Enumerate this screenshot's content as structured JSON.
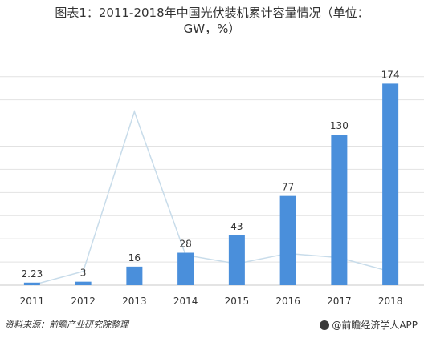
{
  "title_line1": "图表1：2011-2018年中国光伏装机累计容量情况（单位：",
  "title_line2": "GW，%）",
  "source": "资料来源：前瞻产业研究院整理",
  "brand": "@前瞻经济学人APP",
  "colors": {
    "bar": "#4a8fdb",
    "growth_line": "#c8dcea",
    "grid": "#e2e2e2",
    "text": "#333333"
  },
  "chart_data": {
    "type": "bar",
    "categories": [
      "2011",
      "2012",
      "2013",
      "2014",
      "2015",
      "2016",
      "2017",
      "2018"
    ],
    "series": [
      {
        "values": [
          2.23,
          3,
          16,
          28,
          43,
          77,
          130,
          174
        ],
        "labels": [
          "2.23",
          "3",
          "16",
          "28",
          "43",
          "77",
          "130",
          "174"
        ]
      }
    ],
    "growth_line": {
      "values": [
        0,
        34.5,
        433.3,
        75,
        53.6,
        79.1,
        68.8,
        33.8
      ]
    },
    "ylim": [
      0,
      190
    ],
    "grid": true
  }
}
